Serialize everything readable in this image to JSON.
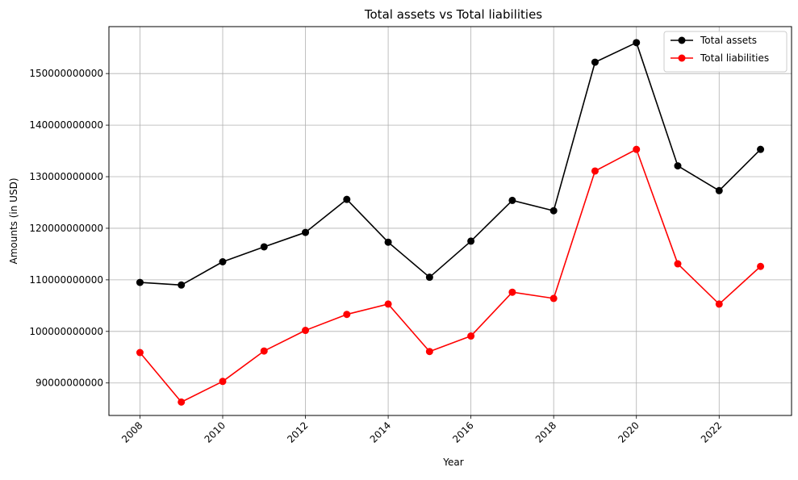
{
  "chart_data": {
    "type": "line",
    "title": "Total assets vs Total liabilities",
    "xlabel": "Year",
    "ylabel": "Amounts (in USD)",
    "x": [
      2008,
      2009,
      2010,
      2011,
      2012,
      2013,
      2014,
      2015,
      2016,
      2017,
      2018,
      2019,
      2020,
      2021,
      2022,
      2023
    ],
    "xlim": [
      2007.25,
      2023.75
    ],
    "ylim": [
      83700000000,
      159100000000
    ],
    "xticks": [
      2008,
      2010,
      2012,
      2014,
      2016,
      2018,
      2020,
      2022
    ],
    "xtick_labels": [
      "2008",
      "2010",
      "2012",
      "2014",
      "2016",
      "2018",
      "2020",
      "2022"
    ],
    "yticks": [
      90000000000,
      100000000000,
      110000000000,
      120000000000,
      130000000000,
      140000000000,
      150000000000
    ],
    "ytick_labels": [
      "90000000000",
      "100000000000",
      "110000000000",
      "120000000000",
      "130000000000",
      "140000000000",
      "150000000000"
    ],
    "grid": true,
    "legend_position": "top-right",
    "series": [
      {
        "name": "Total assets",
        "color": "#000000",
        "values": [
          109500000000,
          109000000000,
          113500000000,
          116400000000,
          119200000000,
          125600000000,
          117300000000,
          110500000000,
          117500000000,
          125400000000,
          123400000000,
          152200000000,
          156000000000,
          132100000000,
          127300000000,
          135300000000
        ]
      },
      {
        "name": "Total liabilities",
        "color": "#ff0000",
        "values": [
          95900000000,
          86300000000,
          90300000000,
          96200000000,
          100200000000,
          103300000000,
          105300000000,
          96100000000,
          99100000000,
          107600000000,
          106400000000,
          131100000000,
          135300000000,
          113100000000,
          105300000000,
          112600000000
        ]
      }
    ]
  }
}
